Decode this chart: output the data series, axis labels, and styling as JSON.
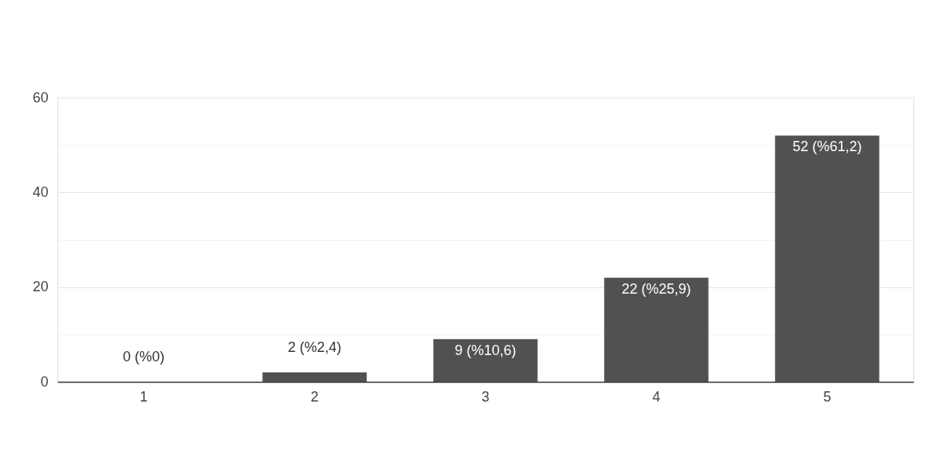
{
  "chart_data": {
    "type": "bar",
    "categories": [
      "1",
      "2",
      "3",
      "4",
      "5"
    ],
    "values": [
      0,
      2,
      9,
      22,
      52
    ],
    "value_labels": [
      "0 (%0)",
      "2 (%2,4)",
      "9 (%10,6)",
      "22 (%25,9)",
      "52 (%61,2)"
    ],
    "color": "#4f524e",
    "ylim": [
      0,
      60
    ],
    "yticks": [
      0,
      {
        "value": 10,
        "label": null
      },
      20,
      {
        "value": 30,
        "label": null
      },
      40,
      {
        "value": 50,
        "label": null
      },
      60
    ],
    "grid": "y"
  }
}
